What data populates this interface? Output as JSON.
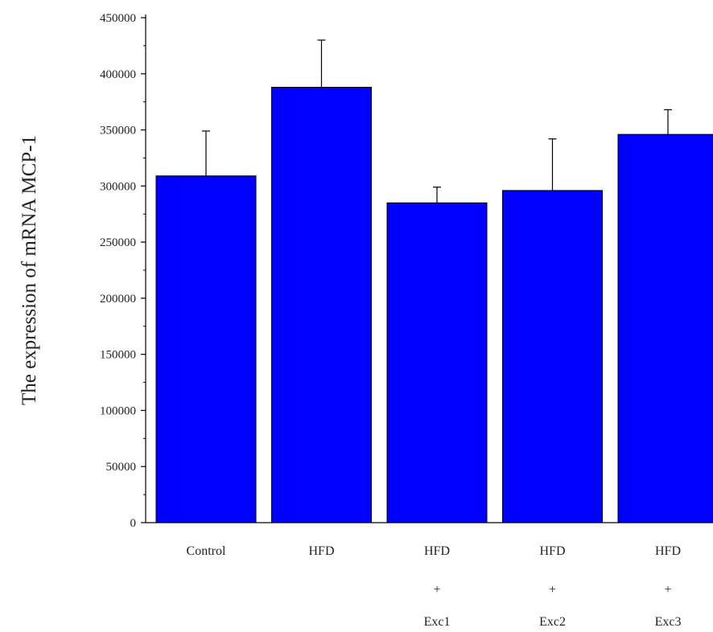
{
  "chart_data": {
    "type": "bar",
    "title": "",
    "xlabel": "",
    "ylabel": "The expression of mRNA MCP-1",
    "ylim": [
      0,
      450000
    ],
    "yticks": [
      "0",
      "50000",
      "100000",
      "150000",
      "200000",
      "250000",
      "300000",
      "350000",
      "400000",
      "450000"
    ],
    "categories": [
      [
        "Control"
      ],
      [
        "HFD"
      ],
      [
        "HFD",
        "+",
        "Exc1"
      ],
      [
        "HFD",
        "+",
        "Exc2"
      ],
      [
        "HFD",
        "+",
        "Exc3"
      ]
    ],
    "values": [
      309000,
      388000,
      285000,
      296000,
      346000
    ],
    "error_upper": [
      349000,
      430000,
      299000,
      342000,
      368000
    ],
    "bar_color": "#0000ff",
    "edge_color": "#000000",
    "grid": false,
    "legend": "none"
  }
}
